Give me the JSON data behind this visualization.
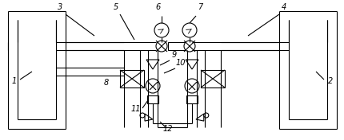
{
  "fig_width": 4.31,
  "fig_height": 1.76,
  "dpi": 100,
  "line_color": "#000000",
  "bg_color": "#ffffff",
  "lw": 0.8
}
